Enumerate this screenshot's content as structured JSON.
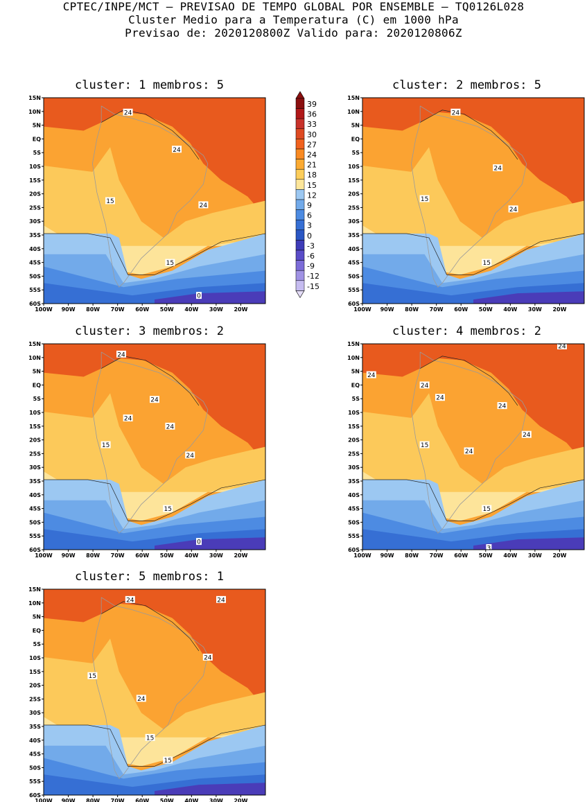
{
  "header": {
    "line1": "CPTEC/INPE/MCT – PREVISAO DE TEMPO GLOBAL POR ENSEMBLE – TQ0126L028",
    "line2": "Cluster Medio para a Temperatura (C) em 1000 hPa",
    "line3": "Previsao de: 2020120800Z   Valido para: 2020120806Z"
  },
  "lat_labels": [
    "15N",
    "10N",
    "5N",
    "EQ",
    "5S",
    "10S",
    "15S",
    "20S",
    "25S",
    "30S",
    "35S",
    "40S",
    "45S",
    "50S",
    "55S",
    "60S"
  ],
  "lon_labels": [
    "100W",
    "90W",
    "80W",
    "70W",
    "60W",
    "50W",
    "40W",
    "30W",
    "20W"
  ],
  "colorbar": {
    "labels": [
      "39",
      "36",
      "33",
      "30",
      "27",
      "24",
      "21",
      "18",
      "15",
      "12",
      "9",
      "6",
      "3",
      "0",
      "-3",
      "-6",
      "-9",
      "-12",
      "-15"
    ],
    "colors": [
      "#8b0f0f",
      "#b01818",
      "#c8322a",
      "#de4a22",
      "#f0621e",
      "#f98a22",
      "#fbaa32",
      "#fccd5a",
      "#fde69a",
      "#9cc8f2",
      "#72aaea",
      "#4d8be2",
      "#366fd4",
      "#2a56c4",
      "#3e3cb8",
      "#5a4cc8",
      "#7c6cd8",
      "#a092e4",
      "#c6bcf0",
      "#e4dcf8"
    ]
  },
  "panels": [
    {
      "id": "1",
      "title": "cluster: 1   membros: 5",
      "labels": [
        {
          "t": "24",
          "x": 38,
          "y": 7
        },
        {
          "t": "24",
          "x": 60,
          "y": 25
        },
        {
          "t": "24",
          "x": 72,
          "y": 52
        },
        {
          "t": "15",
          "x": 30,
          "y": 50
        },
        {
          "t": "15",
          "x": 57,
          "y": 80
        },
        {
          "t": "0",
          "x": 70,
          "y": 96
        }
      ]
    },
    {
      "id": "2",
      "title": "cluster: 2   membros: 5",
      "labels": [
        {
          "t": "24",
          "x": 42,
          "y": 7
        },
        {
          "t": "24",
          "x": 61,
          "y": 34
        },
        {
          "t": "24",
          "x": 68,
          "y": 54
        },
        {
          "t": "15",
          "x": 28,
          "y": 49
        },
        {
          "t": "15",
          "x": 56,
          "y": 80
        }
      ]
    },
    {
      "id": "3",
      "title": "cluster: 3   membros: 2",
      "labels": [
        {
          "t": "24",
          "x": 35,
          "y": 5
        },
        {
          "t": "24",
          "x": 50,
          "y": 27
        },
        {
          "t": "24",
          "x": 38,
          "y": 36
        },
        {
          "t": "24",
          "x": 57,
          "y": 40
        },
        {
          "t": "24",
          "x": 66,
          "y": 54
        },
        {
          "t": "15",
          "x": 28,
          "y": 49
        },
        {
          "t": "15",
          "x": 56,
          "y": 80
        },
        {
          "t": "0",
          "x": 70,
          "y": 96
        }
      ]
    },
    {
      "id": "4",
      "title": "cluster: 4   membros: 2",
      "labels": [
        {
          "t": "24",
          "x": 4,
          "y": 15
        },
        {
          "t": "24",
          "x": 28,
          "y": 20
        },
        {
          "t": "24",
          "x": 35,
          "y": 26
        },
        {
          "t": "24",
          "x": 63,
          "y": 30
        },
        {
          "t": "24",
          "x": 74,
          "y": 44
        },
        {
          "t": "24",
          "x": 48,
          "y": 52
        },
        {
          "t": "24",
          "x": 90,
          "y": 1
        },
        {
          "t": "15",
          "x": 28,
          "y": 49
        },
        {
          "t": "15",
          "x": 56,
          "y": 80
        },
        {
          "t": "3",
          "x": 57,
          "y": 99
        }
      ]
    },
    {
      "id": "5",
      "title": "cluster: 5   membros: 1",
      "labels": [
        {
          "t": "24",
          "x": 39,
          "y": 5
        },
        {
          "t": "24",
          "x": 80,
          "y": 5
        },
        {
          "t": "24",
          "x": 74,
          "y": 33
        },
        {
          "t": "24",
          "x": 44,
          "y": 53
        },
        {
          "t": "15",
          "x": 22,
          "y": 42
        },
        {
          "t": "15",
          "x": 48,
          "y": 72
        },
        {
          "t": "15",
          "x": 56,
          "y": 83
        }
      ]
    }
  ]
}
